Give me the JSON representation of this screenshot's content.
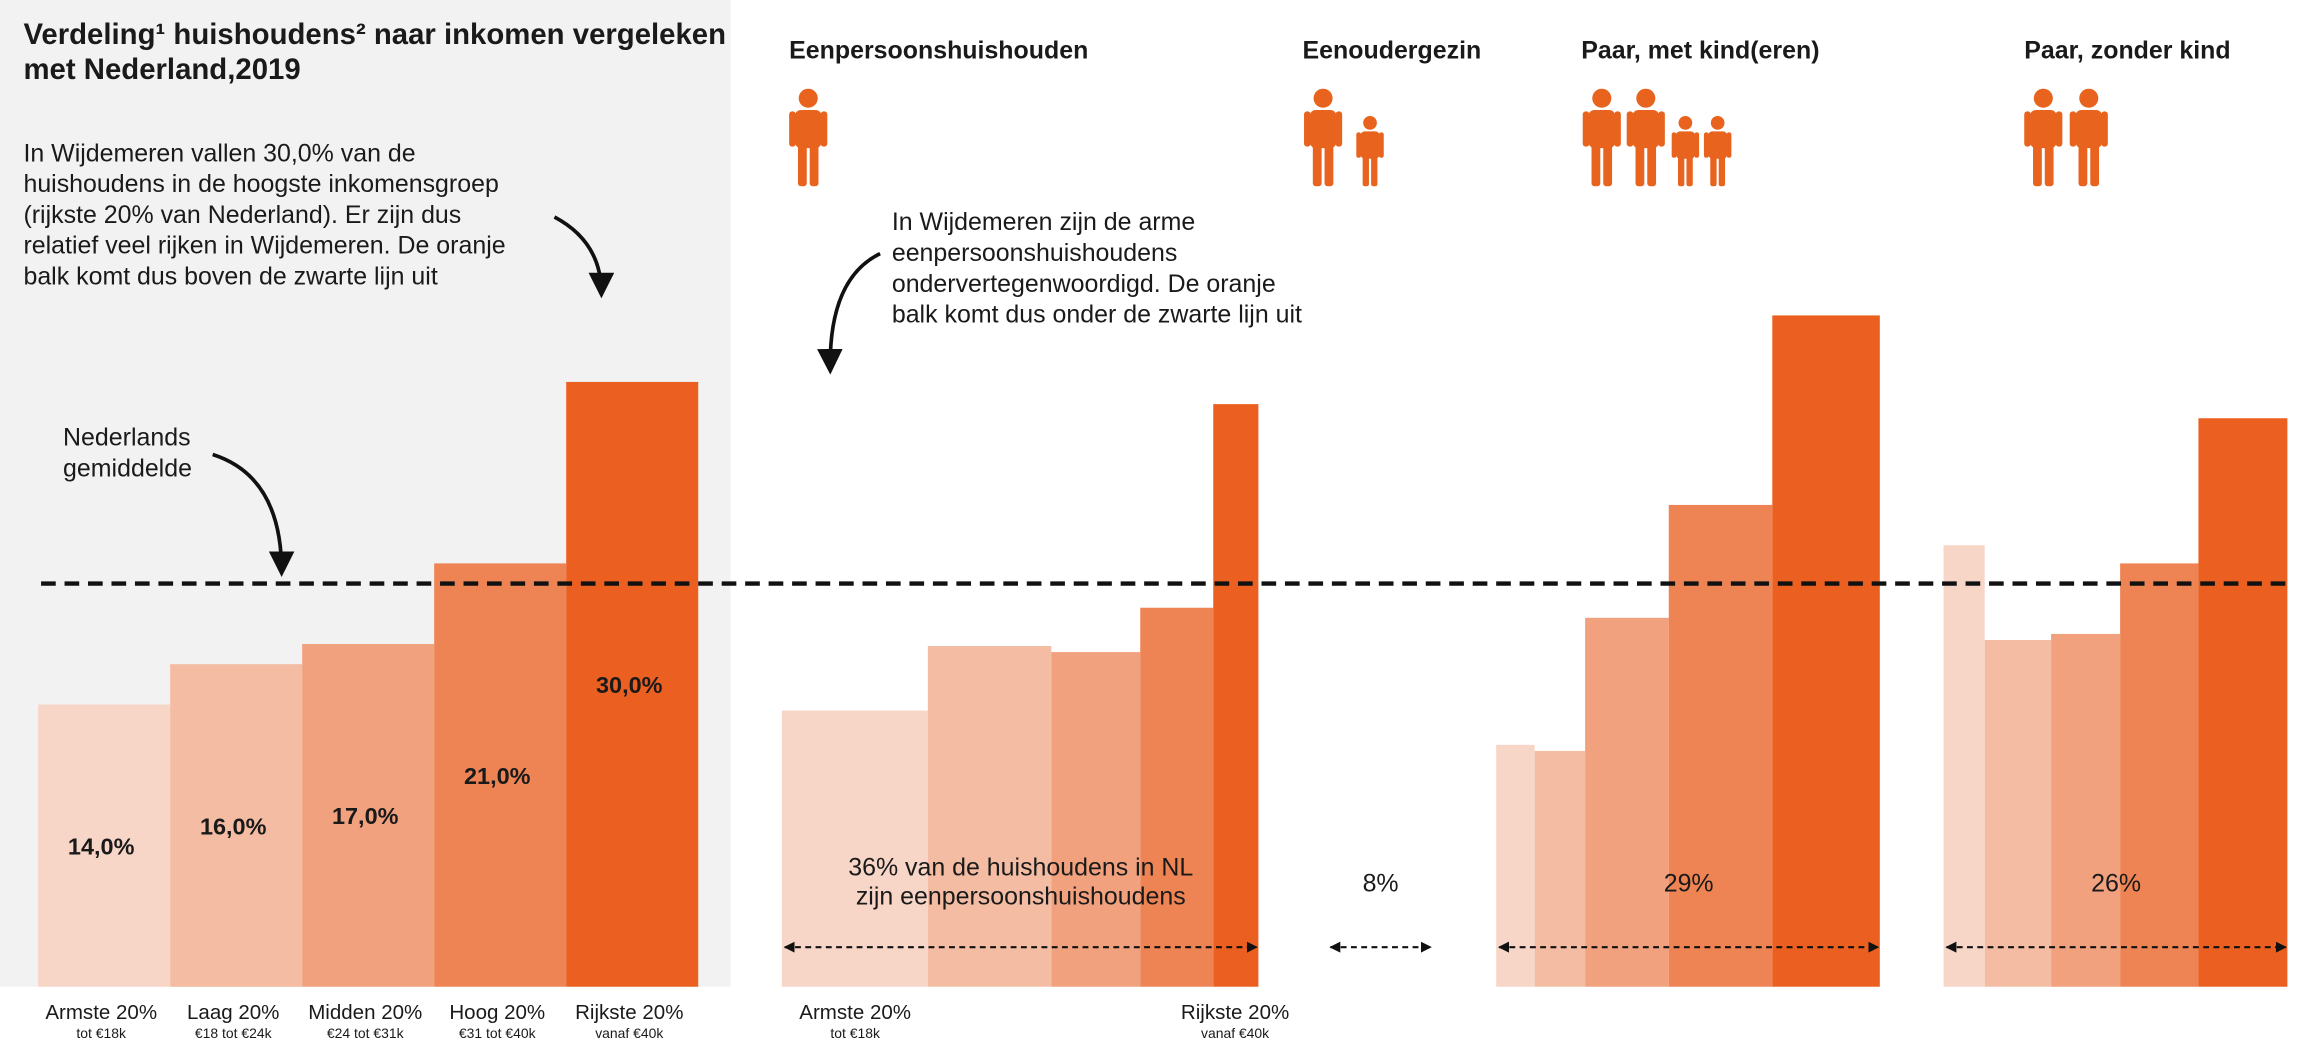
{
  "chart_data": {
    "type": "marimekko",
    "title": [
      "Verdeling¹ huishoudens² naar inkomen vergeleken",
      "met Nederland,2019"
    ],
    "ylim": [
      0,
      40
    ],
    "colors": [
      "#f7d6c8",
      "#f4bca3",
      "#f1a17d",
      "#ee8454",
      "#eb6020"
    ],
    "categories": [
      "Armste 20%",
      "Laag 20%",
      "Midden 20%",
      "Hoog 20%",
      "Rijkste 20%"
    ],
    "category_sublabels": [
      "tot €18k",
      "€18 tot €24k",
      "€24 tot €31k",
      "€31 tot €40k",
      "vanaf €40k"
    ],
    "values": [
      14,
      16,
      17,
      21,
      30
    ],
    "value_labels": [
      "14,0%",
      "16,0%",
      "17,0%",
      "21,0%",
      "30,0%"
    ],
    "national_average": 20,
    "national_average_label": [
      "Nederlands",
      "gemiddelde"
    ],
    "annotations": [
      [
        "In Wijdemeren vallen 30,0% van de",
        "huishoudens in de hoogste inkomensgroep",
        "(rijkste 20% van Nederland). Er zijn dus",
        "relatief veel rijken in Wijdemeren. De oranje",
        "balk komt dus boven de zwarte lijn uit"
      ],
      [
        "In Wijdemeren zijn de arme",
        "eenpersoonshuishoudens",
        "ondervertegenwoordigd. De oranje",
        "balk komt dus onder de zwarte lijn uit"
      ]
    ],
    "groups": [
      {
        "name": "Eenpersoonshuishouden",
        "share": 36,
        "share_label": [
          "36% van de huishoudens in NL",
          "zijn eenpersoonshuishoudens"
        ],
        "widths": [
          11.0,
          9.3,
          6.7,
          5.5,
          3.4
        ],
        "values": [
          13.7,
          16.9,
          16.6,
          18.8,
          28.9
        ]
      },
      {
        "name": "Eenoudergezin",
        "share": 8,
        "share_label": [
          "8%"
        ]
      },
      {
        "name": "Paar, met kind(eren)",
        "share": 29,
        "share_label": [
          "29%"
        ],
        "widths": [
          2.9,
          3.8,
          6.3,
          7.8,
          8.1
        ],
        "values": [
          12.0,
          11.7,
          18.3,
          23.9,
          33.3
        ]
      },
      {
        "name": "Paar, zonder kind",
        "share": 26,
        "share_label": [
          "26%"
        ],
        "widths": [
          3.1,
          5.0,
          5.2,
          5.9,
          6.7
        ],
        "values": [
          21.9,
          17.2,
          17.5,
          21.0,
          28.2
        ]
      }
    ]
  }
}
